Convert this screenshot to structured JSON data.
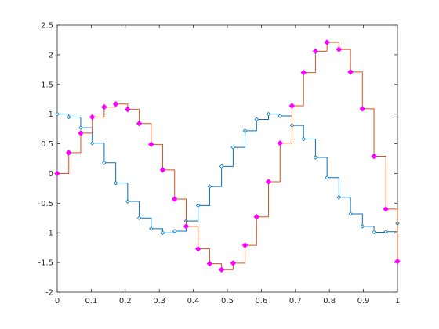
{
  "chart_data": {
    "type": "stairs",
    "x": [
      0,
      0.034,
      0.069,
      0.103,
      0.138,
      0.172,
      0.207,
      0.241,
      0.276,
      0.31,
      0.345,
      0.379,
      0.414,
      0.448,
      0.483,
      0.517,
      0.552,
      0.586,
      0.621,
      0.655,
      0.69,
      0.724,
      0.759,
      0.793,
      0.828,
      0.862,
      0.897,
      0.931,
      0.966,
      1
    ],
    "series": [
      {
        "color": "#0072bd",
        "marker_color": "#0072bd",
        "marker_filled": false,
        "values": [
          1.0,
          0.95,
          0.77,
          0.51,
          0.18,
          -0.16,
          -0.47,
          -0.75,
          -0.93,
          -1.0,
          -0.97,
          -0.8,
          -0.54,
          -0.22,
          0.12,
          0.44,
          0.72,
          0.91,
          1.0,
          0.97,
          0.81,
          0.58,
          0.27,
          -0.07,
          -0.4,
          -0.68,
          -0.89,
          -0.99,
          -0.98,
          -0.84
        ]
      },
      {
        "color": "#d95319",
        "marker_color": "#ff00ff",
        "marker_filled": true,
        "values": [
          0,
          0.35,
          0.68,
          0.95,
          1.12,
          1.17,
          1.08,
          0.84,
          0.49,
          0.06,
          -0.43,
          -0.89,
          -1.27,
          -1.52,
          -1.62,
          -1.51,
          -1.21,
          -0.73,
          -0.14,
          0.51,
          1.14,
          1.7,
          2.06,
          2.21,
          2.09,
          1.71,
          1.09,
          0.29,
          -0.6,
          -1.48
        ]
      }
    ],
    "xlim": [
      0,
      1
    ],
    "xticks": [
      0,
      0.1,
      0.2,
      0.3,
      0.4,
      0.5,
      0.6,
      0.7,
      0.8,
      0.9,
      1
    ],
    "ylim": [
      -2,
      2.5
    ],
    "yticks": [
      -2,
      -1.5,
      -1,
      -0.5,
      0,
      0.5,
      1,
      1.5,
      2,
      2.5
    ],
    "grid": false
  }
}
